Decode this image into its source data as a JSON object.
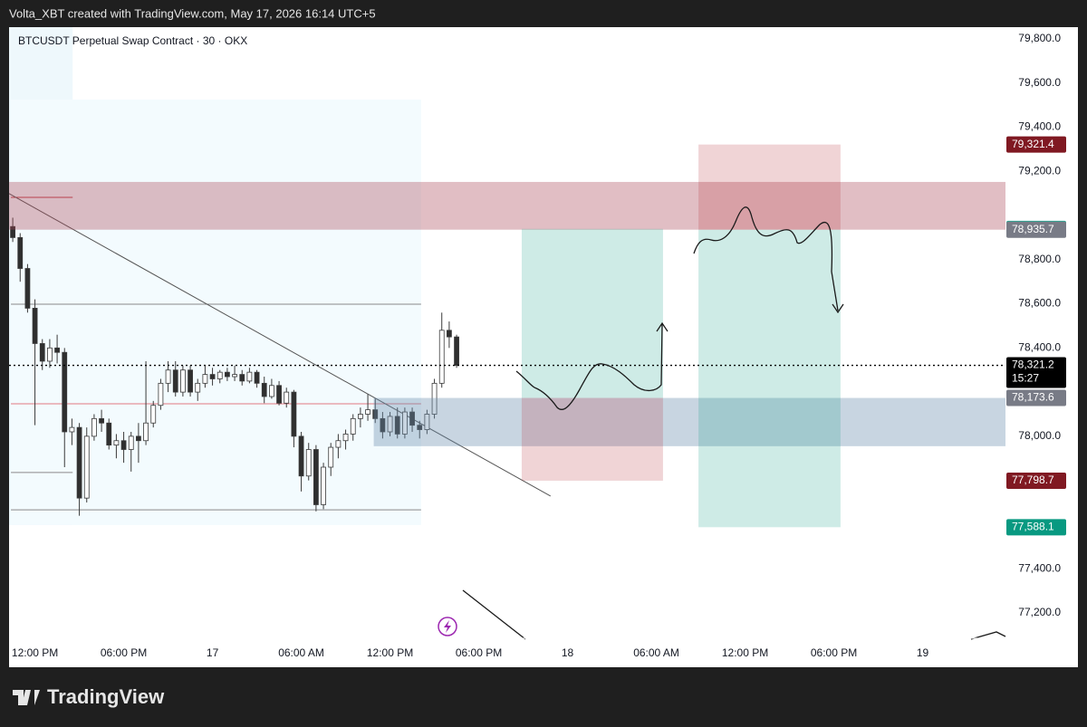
{
  "header": {
    "credit": "Volta_XBT created with TradingView.com, May 17, 2026 16:14 UTC+5",
    "brand": "TradingView"
  },
  "chart_data": {
    "type": "candlestick",
    "title": "BTCUSDT Perpetual Swap Contract · 30 · OKX",
    "open": [
      78950,
      78900,
      78760,
      78580,
      78420,
      78340,
      78400,
      78380,
      78020,
      78040,
      77720,
      78000,
      78080,
      78060,
      77960,
      77980,
      77940,
      78000,
      77980,
      78060,
      78140,
      78240,
      78300,
      78200,
      78300,
      78200,
      78240,
      78280,
      78260,
      78290,
      78270,
      78280,
      78250,
      78290,
      78240,
      78180,
      78230,
      78150,
      78200,
      78000,
      77820,
      77940,
      77690,
      77860,
      77950,
      77980,
      78010,
      78080,
      78100,
      78120,
      78080,
      78020,
      78090,
      78010,
      78110,
      78050,
      78030,
      78100,
      78240,
      78480,
      78450
    ],
    "high": [
      78990,
      78920,
      78780,
      78620,
      78440,
      78440,
      78460,
      78400,
      78080,
      78060,
      78040,
      78100,
      78120,
      78080,
      78010,
      78020,
      78020,
      78060,
      78340,
      78160,
      78260,
      78340,
      78340,
      78320,
      78320,
      78260,
      78320,
      78310,
      78300,
      78310,
      78320,
      78300,
      78310,
      78300,
      78270,
      78260,
      78250,
      78220,
      78210,
      78020,
      77970,
      77960,
      77880,
      77970,
      78010,
      78030,
      78100,
      78130,
      78190,
      78170,
      78110,
      78110,
      78130,
      78130,
      78130,
      78070,
      78120,
      78260,
      78560,
      78520,
      78460
    ],
    "low": [
      78880,
      78700,
      78560,
      78050,
      78300,
      78310,
      78330,
      77860,
      77960,
      77640,
      77700,
      77980,
      78020,
      77940,
      77900,
      77880,
      77840,
      77880,
      77960,
      78040,
      78120,
      78200,
      78180,
      78180,
      78180,
      78160,
      78220,
      78230,
      78240,
      78250,
      78250,
      78230,
      78240,
      78220,
      78150,
      78170,
      78140,
      78130,
      77950,
      77750,
      77800,
      77660,
      77670,
      77820,
      77900,
      77940,
      77980,
      78040,
      78070,
      78060,
      77990,
      78000,
      77990,
      77990,
      78020,
      77990,
      78010,
      78080,
      78220,
      78400,
      78310
    ],
    "close": [
      78900,
      78760,
      78580,
      78420,
      78340,
      78400,
      78380,
      78020,
      78040,
      77720,
      78000,
      78080,
      78060,
      77960,
      77980,
      77940,
      78000,
      77980,
      78060,
      78140,
      78240,
      78300,
      78200,
      78300,
      78200,
      78240,
      78280,
      78260,
      78290,
      78270,
      78280,
      78250,
      78290,
      78240,
      78180,
      78230,
      78150,
      78200,
      78000,
      77820,
      77940,
      77690,
      77860,
      77950,
      77980,
      78010,
      78080,
      78100,
      78120,
      78080,
      78020,
      78090,
      78010,
      78110,
      78050,
      78030,
      78100,
      78240,
      78480,
      78450,
      78321.2
    ],
    "up_color": "#ffffff",
    "down_color": "#2f2f2f",
    "wick_color": "#3a3a3a",
    "ylim": [
      77085,
      79853
    ],
    "yticks": [
      {
        "value": 77200,
        "label": "77,200.0"
      },
      {
        "value": 77400,
        "label": "77,400.0"
      },
      {
        "value": 78000,
        "label": "78,000.0"
      },
      {
        "value": 78400,
        "label": "78,400.0"
      },
      {
        "value": 78600,
        "label": "78,600.0"
      },
      {
        "value": 78800,
        "label": "78,800.0"
      },
      {
        "value": 79200,
        "label": "79,200.0"
      },
      {
        "value": 79400,
        "label": "79,400.0"
      },
      {
        "value": 79600,
        "label": "79,600.0"
      },
      {
        "value": 79800,
        "label": "79,800.0"
      }
    ],
    "xlim": [
      -0.5,
      134.2
    ],
    "xticks": [
      {
        "value": 3,
        "label": "12:00 PM"
      },
      {
        "value": 15,
        "label": "06:00 PM"
      },
      {
        "value": 27,
        "label": "17"
      },
      {
        "value": 39,
        "label": "06:00 AM"
      },
      {
        "value": 51,
        "label": "12:00 PM"
      },
      {
        "value": 63,
        "label": "06:00 PM"
      },
      {
        "value": 75,
        "label": "18"
      },
      {
        "value": 87,
        "label": "06:00 AM"
      },
      {
        "value": 99,
        "label": "12:00 PM"
      },
      {
        "value": 111,
        "label": "06:00 PM"
      },
      {
        "value": 123,
        "label": "19"
      }
    ],
    "price_labels": [
      {
        "value": 79321.4,
        "label": "79,321.4",
        "color": "#801922"
      },
      {
        "value": 78939.3,
        "label": "78,939.3",
        "color": "#22ab94"
      },
      {
        "value": 78935.7,
        "label": "78,935.7",
        "color": "#787b86"
      },
      {
        "value": 78321.2,
        "label": "78,321.2",
        "color": "#000000",
        "countdown": "15:27"
      },
      {
        "value": 78173.6,
        "label": "78,173.6",
        "color": "#787b86"
      },
      {
        "value": 77798.7,
        "label": "77,798.7",
        "color": "#801922"
      },
      {
        "value": 77588.1,
        "label": "77,588.1",
        "color": "#089981"
      }
    ],
    "boxes": [
      {
        "x": [
          -0.5,
          8.1
        ],
        "y": [
          77598,
          79853
        ],
        "color": "#eef8fc"
      },
      {
        "x": [
          -0.25,
          55.2
        ],
        "y": [
          77598,
          79525
        ],
        "color": "#f3fbfe"
      }
    ],
    "lines": [
      {
        "x": [
          -0.25,
          55.2
        ],
        "y": [
          78598,
          78598
        ],
        "color": "#8a8a8a"
      },
      {
        "x": [
          -0.25,
          55.2
        ],
        "y": [
          77667,
          77667
        ],
        "color": "#8a8a8a"
      },
      {
        "x": [
          -0.25,
          8.1
        ],
        "y": [
          77836,
          77836
        ],
        "color": "#8a8a8a"
      },
      {
        "x": [
          -0.25,
          8.1
        ],
        "y": [
          79082,
          79082
        ],
        "color": "#c2414b"
      },
      {
        "x": [
          -0.25,
          55.2
        ],
        "y": [
          78147,
          78147
        ],
        "color": "#e07a82"
      },
      {
        "x": [
          -0.5,
          72.7
        ],
        "y": [
          79099,
          77729
        ],
        "color": "#555555"
      }
    ],
    "zones": [
      {
        "x": [
          -0.5,
          134.2
        ],
        "y": [
          78935.7,
          79152
        ],
        "color": "rgba(170,70,85,0.35)"
      },
      {
        "x": [
          48.8,
          134.2
        ],
        "y": [
          77955,
          78173.6
        ],
        "color": "rgba(110,145,175,0.38)"
      },
      {
        "x": [
          68.8,
          87.9
        ],
        "y": [
          78173.6,
          78939.3
        ],
        "color": "rgba(8,153,129,0.2)"
      },
      {
        "x": [
          68.8,
          87.9
        ],
        "y": [
          77798.7,
          78173.6
        ],
        "color": "rgba(178,40,51,0.2)"
      },
      {
        "x": [
          92.7,
          111.9
        ],
        "y": [
          78935.7,
          79321.4
        ],
        "color": "rgba(178,40,51,0.2)"
      },
      {
        "x": [
          92.7,
          111.9
        ],
        "y": [
          77588.1,
          78935.7
        ],
        "color": "rgba(8,153,129,0.2)"
      }
    ]
  }
}
